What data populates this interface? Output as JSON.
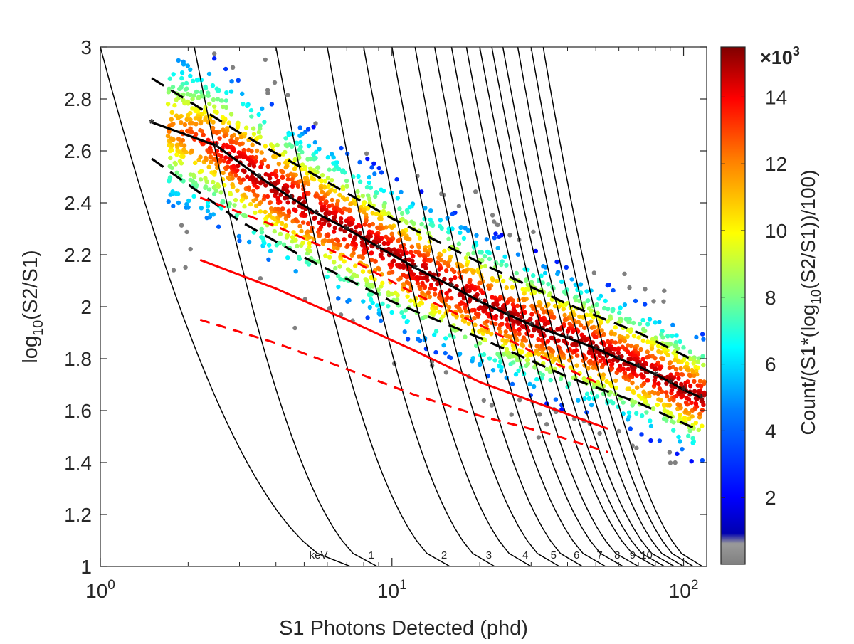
{
  "chart_data": {
    "type": "scatter",
    "title": "",
    "xlabel": "S1 Photons Detected (phd)",
    "ylabel_main": "log",
    "ylabel_sub": "10",
    "ylabel_tail": "(S2/S1)",
    "x_scale": "log",
    "xlim": [
      1,
      120
    ],
    "ylim": [
      1,
      3
    ],
    "x_ticks": [
      {
        "value": 1,
        "base": "10",
        "exp": "0"
      },
      {
        "value": 10,
        "base": "10",
        "exp": "1"
      },
      {
        "value": 100,
        "base": "10",
        "exp": "2"
      }
    ],
    "y_ticks": [
      "1",
      "1.2",
      "1.4",
      "1.6",
      "1.8",
      "2",
      "2.2",
      "2.4",
      "2.6",
      "2.8",
      "3"
    ],
    "grid": false,
    "colorbar": {
      "label_a": "Count/(S1*(log",
      "label_sub": "10",
      "label_b": "(S2/S1))/100)",
      "ticks": [
        "2",
        "4",
        "6",
        "8",
        "10",
        "12",
        "14"
      ],
      "tick_values": [
        2,
        4,
        6,
        8,
        10,
        12,
        14
      ],
      "range": [
        0,
        15.5
      ],
      "multiplier_prefix": "×10",
      "multiplier_exp": "3",
      "colormap": "jet with gray low end"
    },
    "band_centroid": {
      "color": "#000000",
      "style": "solid with star markers",
      "x": [
        1.5,
        2.5,
        3.5,
        4.5,
        5.5,
        7,
        9,
        12,
        16,
        20,
        25,
        30,
        40,
        50,
        60,
        70,
        80,
        90,
        100,
        115
      ],
      "y": [
        2.71,
        2.62,
        2.5,
        2.42,
        2.36,
        2.3,
        2.23,
        2.15,
        2.08,
        2.02,
        1.97,
        1.93,
        1.88,
        1.84,
        1.8,
        1.77,
        1.74,
        1.71,
        1.68,
        1.65
      ]
    },
    "band_upper": {
      "color": "#000000",
      "style": "dashed",
      "x": [
        1.5,
        3,
        5,
        10,
        20,
        40,
        70,
        110
      ],
      "y": [
        2.88,
        2.67,
        2.53,
        2.34,
        2.17,
        2.01,
        1.9,
        1.79
      ]
    },
    "band_lower": {
      "color": "#000000",
      "style": "dashed",
      "x": [
        1.5,
        3,
        5,
        10,
        20,
        40,
        70,
        110
      ],
      "y": [
        2.57,
        2.33,
        2.19,
        2.02,
        1.88,
        1.73,
        1.63,
        1.53
      ]
    },
    "nr_red_dashed_upper": {
      "color": "#ff0000",
      "style": "dashed",
      "x": [
        2.2,
        4,
        7,
        12,
        20,
        35,
        50
      ],
      "y": [
        2.42,
        2.31,
        2.19,
        2.05,
        1.93,
        1.79,
        1.71
      ]
    },
    "nr_red_solid": {
      "color": "#ff0000",
      "style": "solid",
      "x": [
        2.2,
        4,
        7,
        12,
        20,
        35,
        55
      ],
      "y": [
        2.18,
        2.07,
        1.95,
        1.83,
        1.71,
        1.61,
        1.53
      ]
    },
    "nr_red_dashed_lower": {
      "color": "#ff0000",
      "style": "dashed",
      "x": [
        2.2,
        4,
        7,
        12,
        20,
        35,
        55
      ],
      "y": [
        1.95,
        1.86,
        1.76,
        1.66,
        1.58,
        1.51,
        1.44
      ]
    },
    "energy_label_unit": "keV",
    "energy_contours": [
      {
        "label": "1",
        "x_at_bottom": 8.9,
        "x_at_top": 2.1
      },
      {
        "label": "2",
        "x_at_bottom": 15.8,
        "x_at_top": 4.0
      },
      {
        "label": "3",
        "x_at_bottom": 22.5,
        "x_at_top": 6.0
      },
      {
        "label": "4",
        "x_at_bottom": 30.0,
        "x_at_top": 8.0
      },
      {
        "label": "5",
        "x_at_bottom": 37.5,
        "x_at_top": 10.0
      },
      {
        "label": "6",
        "x_at_bottom": 45.0,
        "x_at_top": 12.0
      },
      {
        "label": "7",
        "x_at_bottom": 54.0,
        "x_at_top": 14.0
      },
      {
        "label": "8",
        "x_at_bottom": 62.0,
        "x_at_top": 16.0
      },
      {
        "label": "9",
        "x_at_bottom": 70.0,
        "x_at_top": 18.0
      },
      {
        "label": "10",
        "x_at_bottom": 80.0,
        "x_at_top": 20.0
      },
      {
        "label": "",
        "x_at_bottom": 86.0,
        "x_at_top": 22.0
      },
      {
        "label": "",
        "x_at_bottom": 93.0,
        "x_at_top": 24.0
      },
      {
        "label": "",
        "x_at_bottom": 100.0,
        "x_at_top": 27.0
      },
      {
        "label": "",
        "x_at_bottom": 108.0,
        "x_at_top": 30.0
      },
      {
        "label": "",
        "x_at_bottom": 116.0,
        "x_at_top": 33.0
      }
    ],
    "energy_contour_low": {
      "x_at_bottom": 7.2,
      "x_at_top": 1.0
    }
  }
}
